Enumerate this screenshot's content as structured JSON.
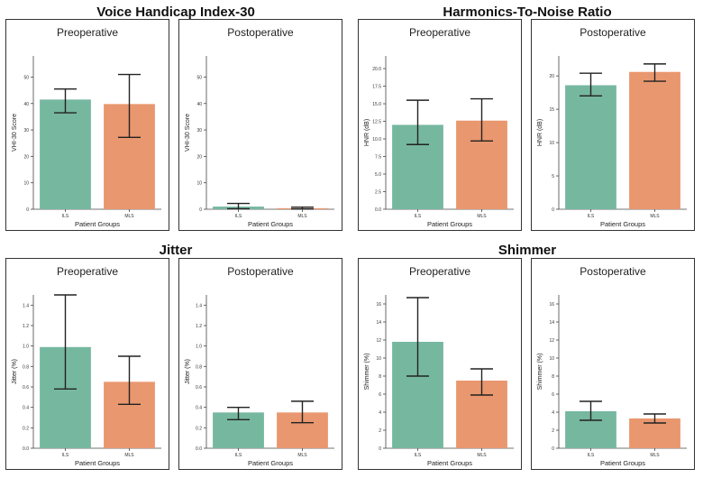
{
  "figure": {
    "groups": [
      {
        "title": "Voice Handicap Index-30"
      },
      {
        "title": "Harmonics-To-Noise Ratio"
      },
      {
        "title": "Jitter"
      },
      {
        "title": "Shimmer"
      }
    ]
  },
  "colors": {
    "ILS": "#76b7a0",
    "MLS": "#e9976f",
    "error": "#222222"
  },
  "chart_data": [
    {
      "type": "bar",
      "group": "Voice Handicap Index-30",
      "title": "Preoperative",
      "xlabel": "Patient Groups",
      "ylabel": "VHI-30 Score",
      "categories": [
        "ILS",
        "MLS"
      ],
      "values": [
        41.5,
        39.8
      ],
      "err_low": [
        36.5,
        27.2
      ],
      "err_high": [
        45.5,
        51.0
      ],
      "ylim": [
        0,
        58
      ],
      "yticks": [
        0,
        10,
        20,
        30,
        40,
        50
      ],
      "ytick_labels": [
        "0",
        "10",
        "20",
        "30",
        "40",
        "50"
      ]
    },
    {
      "type": "bar",
      "group": "Voice Handicap Index-30",
      "title": "Postoperative",
      "xlabel": "Patient Groups",
      "ylabel": "VHI-30 Score",
      "categories": [
        "ILS",
        "MLS"
      ],
      "values": [
        1.0,
        0.4
      ],
      "err_low": [
        0.2,
        0.1
      ],
      "err_high": [
        2.2,
        0.8
      ],
      "ylim": [
        0,
        58
      ],
      "yticks": [
        0,
        10,
        20,
        30,
        40,
        50
      ],
      "ytick_labels": [
        "0",
        "10",
        "20",
        "30",
        "40",
        "50"
      ]
    },
    {
      "type": "bar",
      "group": "Harmonics-To-Noise Ratio",
      "title": "Preoperative",
      "xlabel": "Patient Groups",
      "ylabel": "HNR (dB)",
      "categories": [
        "ILS",
        "MLS"
      ],
      "values": [
        12.0,
        12.6
      ],
      "err_low": [
        9.2,
        9.7
      ],
      "err_high": [
        15.5,
        15.7
      ],
      "ylim": [
        0,
        21.8
      ],
      "yticks": [
        0,
        2.5,
        5,
        7.5,
        10,
        12.5,
        15,
        17.5,
        20
      ],
      "ytick_labels": [
        "0.0",
        "2.5",
        "5.0",
        "7.5",
        "10.0",
        "12.5",
        "15.0",
        "17.5",
        "20.0"
      ]
    },
    {
      "type": "bar",
      "group": "Harmonics-To-Noise Ratio",
      "title": "Postoperative",
      "xlabel": "Patient Groups",
      "ylabel": "HNR (dB)",
      "categories": [
        "ILS",
        "MLS"
      ],
      "values": [
        18.6,
        20.6
      ],
      "err_low": [
        17.0,
        19.2
      ],
      "err_high": [
        20.4,
        21.8
      ],
      "ylim": [
        0,
        23
      ],
      "yticks": [
        0,
        5,
        10,
        15,
        20
      ],
      "ytick_labels": [
        "0",
        "5",
        "10",
        "15",
        "20"
      ]
    },
    {
      "type": "bar",
      "group": "Jitter",
      "title": "Preoperative",
      "xlabel": "Patient Groups",
      "ylabel": "Jitter (%)",
      "categories": [
        "ILS",
        "MLS"
      ],
      "values": [
        0.99,
        0.65
      ],
      "err_low": [
        0.58,
        0.43
      ],
      "err_high": [
        1.5,
        0.9
      ],
      "ylim": [
        0,
        1.5
      ],
      "yticks": [
        0,
        0.2,
        0.4,
        0.6,
        0.8,
        1.0,
        1.2,
        1.4
      ],
      "ytick_labels": [
        "0.0",
        "0.2",
        "0.4",
        "0.6",
        "0.8",
        "1.0",
        "1.2",
        "1.4"
      ]
    },
    {
      "type": "bar",
      "group": "Jitter",
      "title": "Postoperative",
      "xlabel": "Patient Groups",
      "ylabel": "Jitter (%)",
      "categories": [
        "ILS",
        "MLS"
      ],
      "values": [
        0.35,
        0.35
      ],
      "err_low": [
        0.28,
        0.25
      ],
      "err_high": [
        0.4,
        0.46
      ],
      "ylim": [
        0,
        1.5
      ],
      "yticks": [
        0,
        0.2,
        0.4,
        0.6,
        0.8,
        1.0,
        1.2,
        1.4
      ],
      "ytick_labels": [
        "0.0",
        "0.2",
        "0.4",
        "0.6",
        "0.8",
        "1.0",
        "1.2",
        "1.4"
      ]
    },
    {
      "type": "bar",
      "group": "Shimmer",
      "title": "Preoperative",
      "xlabel": "Patient Groups",
      "ylabel": "Shimmer (%)",
      "categories": [
        "ILS",
        "MLS"
      ],
      "values": [
        11.8,
        7.5
      ],
      "err_low": [
        8.0,
        5.9
      ],
      "err_high": [
        16.7,
        8.8
      ],
      "ylim": [
        0,
        17
      ],
      "yticks": [
        0,
        2,
        4,
        6,
        8,
        10,
        12,
        14,
        16
      ],
      "ytick_labels": [
        "0",
        "2",
        "4",
        "6",
        "8",
        "10",
        "12",
        "14",
        "16"
      ]
    },
    {
      "type": "bar",
      "group": "Shimmer",
      "title": "Postoperative",
      "xlabel": "Patient Groups",
      "ylabel": "Shimmer (%)",
      "categories": [
        "ILS",
        "MLS"
      ],
      "values": [
        4.1,
        3.3
      ],
      "err_low": [
        3.1,
        2.8
      ],
      "err_high": [
        5.2,
        3.8
      ],
      "ylim": [
        0,
        17
      ],
      "yticks": [
        0,
        2,
        4,
        6,
        8,
        10,
        12,
        14,
        16
      ],
      "ytick_labels": [
        "0",
        "2",
        "4",
        "6",
        "8",
        "10",
        "12",
        "14",
        "16"
      ]
    }
  ]
}
